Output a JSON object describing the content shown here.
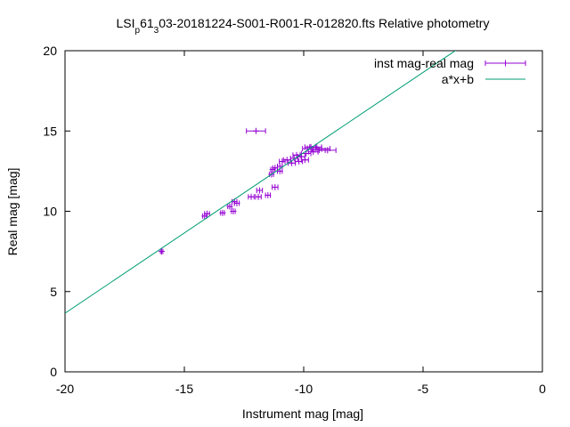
{
  "chart_data": {
    "type": "scatter",
    "title": {
      "parts": [
        {
          "text": "LSI",
          "shift": null
        },
        {
          "text": "p",
          "shift": "sub"
        },
        {
          "text": "61",
          "shift": null
        },
        {
          "text": "3",
          "shift": "sub"
        },
        {
          "text": "03-20181224-S001-R001-R-012820.fts Relative photometry",
          "shift": null
        }
      ]
    },
    "xlabel": "Instrument mag [mag]",
    "ylabel": "Real mag [mag]",
    "xlim": [
      -20,
      0
    ],
    "ylim": [
      0,
      20
    ],
    "xticks": [
      -20,
      -15,
      -10,
      -5,
      0
    ],
    "yticks": [
      0,
      5,
      10,
      15,
      20
    ],
    "grid": false,
    "legend_position": "top-right",
    "series": [
      {
        "name": "inst mag-real mag",
        "kind": "points-with-x-errorbars",
        "color": "#9400d3",
        "points": [
          {
            "x": -15.95,
            "y": 7.5,
            "xerr": 0.05
          },
          {
            "x": -14.05,
            "y": 9.85,
            "xerr": 0.1
          },
          {
            "x": -14.15,
            "y": 9.7,
            "xerr": 0.08
          },
          {
            "x": -13.4,
            "y": 9.9,
            "xerr": 0.08
          },
          {
            "x": -13.1,
            "y": 10.3,
            "xerr": 0.08
          },
          {
            "x": -12.9,
            "y": 10.6,
            "xerr": 0.1
          },
          {
            "x": -12.8,
            "y": 10.5,
            "xerr": 0.1
          },
          {
            "x": -12.95,
            "y": 10.0,
            "xerr": 0.08
          },
          {
            "x": -12.2,
            "y": 10.9,
            "xerr": 0.12
          },
          {
            "x": -11.9,
            "y": 10.9,
            "xerr": 0.12
          },
          {
            "x": -11.85,
            "y": 11.3,
            "xerr": 0.12
          },
          {
            "x": -11.5,
            "y": 11.0,
            "xerr": 0.1
          },
          {
            "x": -11.2,
            "y": 11.5,
            "xerr": 0.12
          },
          {
            "x": -11.35,
            "y": 12.3,
            "xerr": 0.08
          },
          {
            "x": -11.3,
            "y": 12.6,
            "xerr": 0.08
          },
          {
            "x": -11.2,
            "y": 12.7,
            "xerr": 0.1
          },
          {
            "x": -11.0,
            "y": 12.5,
            "xerr": 0.1
          },
          {
            "x": -11.0,
            "y": 12.8,
            "xerr": 0.1
          },
          {
            "x": -10.9,
            "y": 13.1,
            "xerr": 0.12
          },
          {
            "x": -10.7,
            "y": 13.2,
            "xerr": 0.15
          },
          {
            "x": -10.5,
            "y": 13.0,
            "xerr": 0.15
          },
          {
            "x": -10.4,
            "y": 13.3,
            "xerr": 0.15
          },
          {
            "x": -10.3,
            "y": 13.5,
            "xerr": 0.15
          },
          {
            "x": -10.2,
            "y": 13.1,
            "xerr": 0.15
          },
          {
            "x": -10.1,
            "y": 13.4,
            "xerr": 0.15
          },
          {
            "x": -9.95,
            "y": 13.2,
            "xerr": 0.15
          },
          {
            "x": -9.9,
            "y": 13.6,
            "xerr": 0.2
          },
          {
            "x": -9.85,
            "y": 13.9,
            "xerr": 0.2
          },
          {
            "x": -9.7,
            "y": 14.0,
            "xerr": 0.25
          },
          {
            "x": -9.6,
            "y": 13.7,
            "xerr": 0.2
          },
          {
            "x": -9.5,
            "y": 14.0,
            "xerr": 0.25
          },
          {
            "x": -9.4,
            "y": 13.8,
            "xerr": 0.3
          },
          {
            "x": -9.25,
            "y": 13.9,
            "xerr": 0.35
          },
          {
            "x": -9.0,
            "y": 13.8,
            "xerr": 0.35
          },
          {
            "x": -12.0,
            "y": 15.0,
            "xerr": 0.4
          }
        ]
      },
      {
        "name": "a*x+b",
        "kind": "line",
        "color": "#009e73",
        "fit": {
          "a": 1.0,
          "b": 23.65
        }
      }
    ]
  }
}
